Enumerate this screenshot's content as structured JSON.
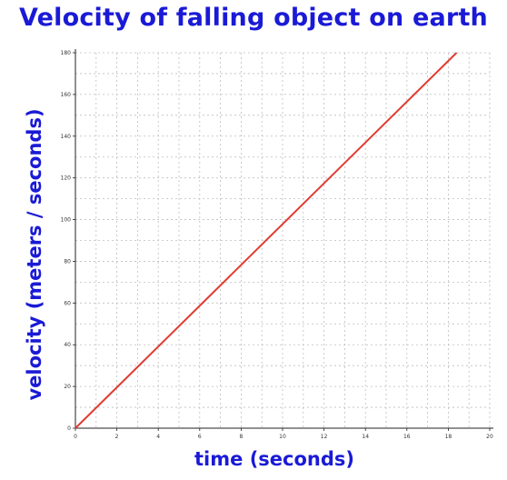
{
  "chart_data": {
    "type": "line",
    "title": "Velocity of falling object on earth",
    "xlabel": "time (seconds)",
    "ylabel": "velocity (meters / seconds)",
    "xlim": [
      0,
      20
    ],
    "ylim": [
      0,
      180
    ],
    "x_ticks": [
      "0",
      "2",
      "4",
      "6",
      "8",
      "10",
      "12",
      "14",
      "16",
      "18",
      "20"
    ],
    "y_ticks": [
      "0",
      "20",
      "40",
      "60",
      "80",
      "100",
      "120",
      "140",
      "160",
      "180"
    ],
    "grid": true,
    "series": [
      {
        "color": "#e03c31",
        "x": [
          0,
          18.4
        ],
        "y": [
          0,
          180
        ]
      }
    ]
  }
}
